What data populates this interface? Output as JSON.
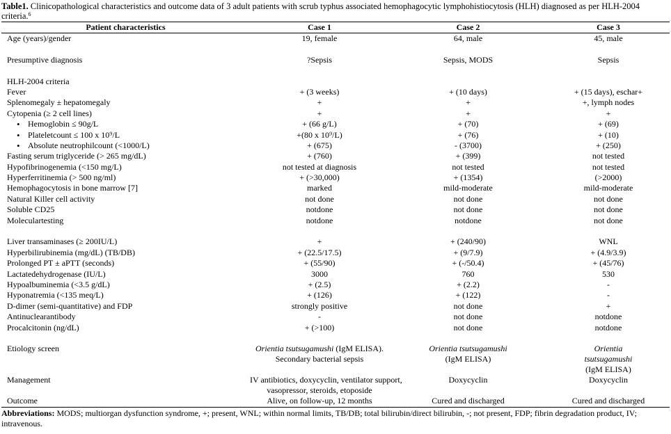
{
  "caption": {
    "label": "Table1.",
    "text": " Clinicopathological characteristics and outcome data of 3 adult patients with scrub typhus associated hemophagocytic lymphohistiocytosis (HLH) diagnosed as per HLH-2004 criteria.",
    "sup": "6"
  },
  "headers": [
    "Patient characteristics",
    "Case 1",
    "Case 2",
    "Case 3"
  ],
  "rows": {
    "age": [
      "Age (years)/gender",
      "19, female",
      "64, male",
      "45, male"
    ],
    "presumptive": [
      "Presumptive diagnosis",
      "?Sepsis",
      "Sepsis, MODS",
      "Sepsis"
    ],
    "hlh_header": "HLH-2004 criteria",
    "fever": [
      "Fever",
      "+ (3 weeks)",
      "+ (10 days)",
      "+ (15 days), eschar+"
    ],
    "spleno": [
      "Splenomegaly ± hepatomegaly",
      "+",
      "+",
      "+, lymph nodes"
    ],
    "cytopenia": [
      "Cytopenia (≥ 2 cell lines)",
      "+",
      "+",
      "+"
    ],
    "hb": [
      "Hemoglobin ≤ 90g/L",
      "+ (66 g/L)",
      "+ (70)",
      "+ (69)"
    ],
    "plt": [
      "Plateletcount  ≤ 100 x 10⁹/L",
      "+(80 x 10⁹/L)",
      "+ (76)",
      "+ (10)"
    ],
    "anc": [
      "Absolute neutrophilcount  (<1000/L)",
      "+ (675)",
      "- (3700)",
      "+ (250)"
    ],
    "tg": [
      "Fasting serum triglyceride  (> 265 mg/dL)",
      "+ (760)",
      "+ (399)",
      "not tested"
    ],
    "fib": [
      "Hypofibrinogenemia (<150 mg/L)",
      "not tested at diagnosis",
      "not tested",
      "not tested"
    ],
    "ferritin": [
      "Hyperferritinemia  (> 500 ng/ml)",
      "+ (>30,000)",
      "+ (1354)",
      "(>2000)"
    ],
    "hemophago": [
      "Hemophagocytosis in bone marrow [7]",
      "marked",
      "mild-moderate",
      "mild-moderate"
    ],
    "nk": [
      "Natural Killer  cell  activity",
      "not done",
      "not done",
      "not done"
    ],
    "cd25": [
      "Soluble CD25",
      "notdone",
      "not done",
      "not done"
    ],
    "molecular": [
      "Moleculartesting",
      "notdone",
      "notdone",
      "not done"
    ],
    "liver": [
      "Liver transaminases (≥ 200IU/L)",
      "+",
      "+ (240/90)",
      "WNL"
    ],
    "bili": [
      "Hyperbilirubinemia  (mg/dL) (TB/DB)",
      "+ (22.5/17.5)",
      "+ (9/7.9)",
      "+ (4.9/3.9)"
    ],
    "pt": [
      " Prolonged PT ± aPTT (seconds)",
      "+ (55/90)",
      "+ (-/50.4)",
      "+ (45/76)"
    ],
    "ldh": [
      "Lactatedehydrogenase (IU/L)",
      "3000",
      "760",
      "530"
    ],
    "alb": [
      "Hypoalbuminemia (<3.5 g/dL)",
      "+ (2.5)",
      "+ (2.2)",
      "-"
    ],
    "na": [
      "Hyponatremia (<135 meq/L)",
      "+ (126)",
      "+ (122)",
      "-"
    ],
    "ddimer": [
      "D-dimer (semi-quantitative) and FDP",
      "strongly positive",
      "not done",
      "+"
    ],
    "ana": [
      "Antinuclearantibody",
      "-",
      "not done",
      "notdone"
    ],
    "pct": [
      "Procalcitonin (ng/dL)",
      "+ (>100)",
      "not done",
      "notdone"
    ],
    "etiology": {
      "label": "Etiology screen",
      "c1_italic": "Orientia tsutsugamushi",
      "c1_rest": " (IgM ELISA).",
      "c1_line2": "Secondary bacterial sepsis",
      "c2_italic": "Orientia tsutsugamushi",
      "c2_line2": "(IgM ELISA)",
      "c3_italic_1": "Orientia",
      "c3_italic_2": "tsutsugamushi",
      "c3_line3": "(IgM ELISA)"
    },
    "management": {
      "label": "Management",
      "c1_line1": "IV antibiotics, doxycyclin, ventilator support,",
      "c1_line2": "vasopressor, steroids, etoposide",
      "c2": "Doxycyclin",
      "c3": "Doxycyclin"
    },
    "outcome": [
      "Outcome",
      "Alive, on follow-up, 12 months",
      "Cured and discharged",
      "Cured and discharged"
    ]
  },
  "abbreviations": {
    "label": "Abbreviations:",
    "text": " MODS; multiorgan dysfunction syndrome, +; present, WNL; within normal limits, TB/DB; total bilirubin/direct bilirubin, -; not present, FDP; fibrin degradation product, IV; intravenous."
  }
}
